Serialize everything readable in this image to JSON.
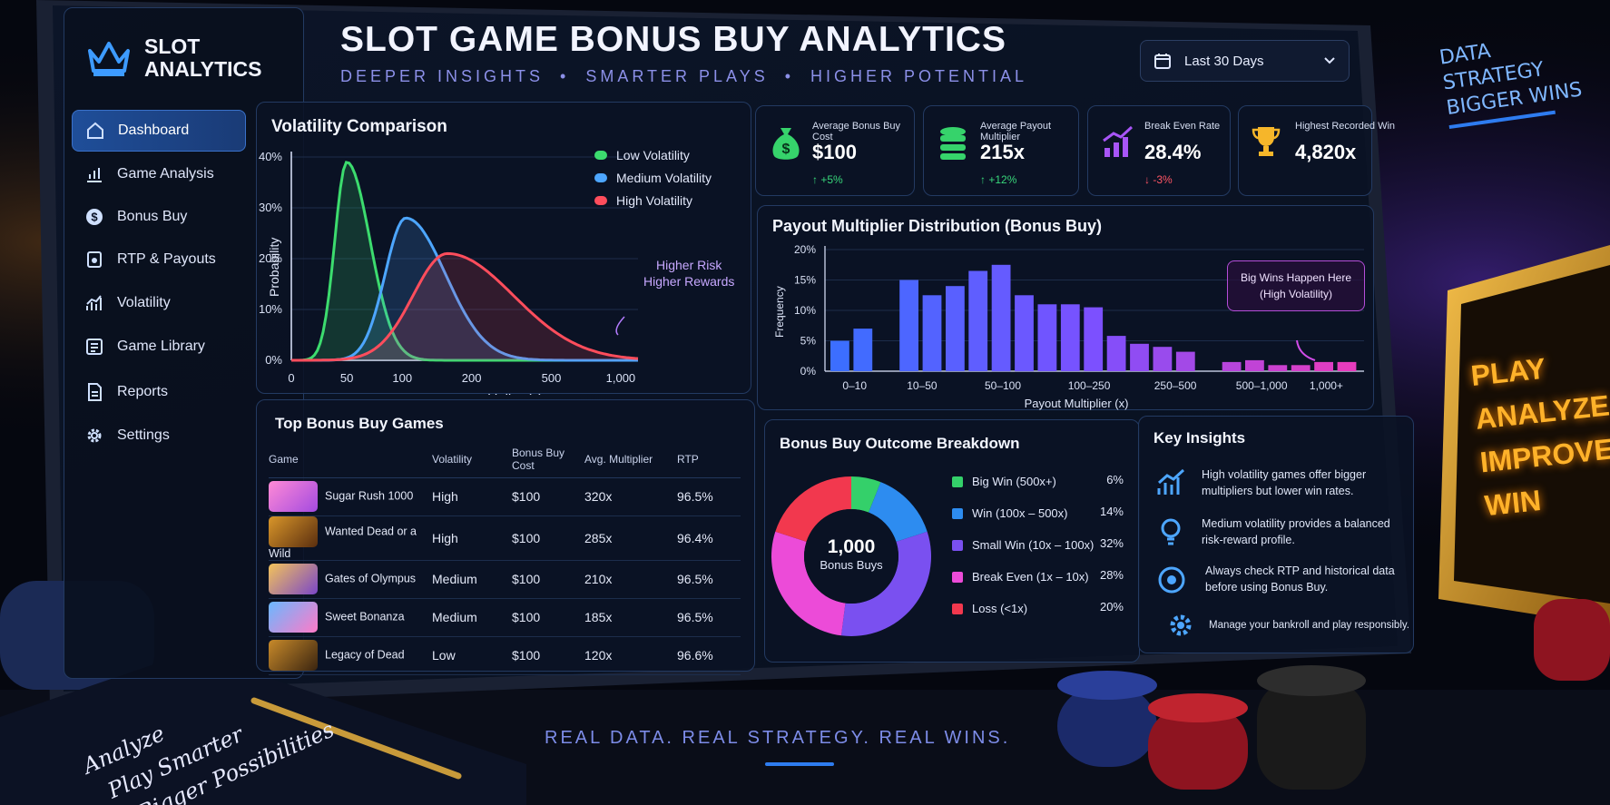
{
  "colors": {
    "accent": "#3a71c9",
    "low": "#3cdc6e",
    "medium": "#4da6ff",
    "high": "#ff4d5c",
    "bg": "#05070f"
  },
  "sidebar": {
    "logo_icon": "crown-icon",
    "logo_text": "SLOT ANALYTICS",
    "items": [
      {
        "label": "Dashboard",
        "icon": "home-icon",
        "active": true
      },
      {
        "label": "Game Analysis",
        "icon": "chart-icon"
      },
      {
        "label": "Bonus Buy",
        "icon": "dollar-icon"
      },
      {
        "label": "RTP & Payouts",
        "icon": "payout-icon"
      },
      {
        "label": "Volatility",
        "icon": "volatility-icon"
      },
      {
        "label": "Game Library",
        "icon": "library-icon"
      },
      {
        "label": "Reports",
        "icon": "reports-icon"
      },
      {
        "label": "Settings",
        "icon": "gear-icon"
      }
    ]
  },
  "header": {
    "title": "SLOT GAME BONUS BUY ANALYTICS",
    "subtitle": "DEEPER INSIGHTS  •  SMARTER PLAYS  •  HIGHER POTENTIAL",
    "date_range": "Last 30 Days"
  },
  "kpis": [
    {
      "label": "Average Bonus Buy Cost",
      "value": "$100",
      "change": "+5%",
      "direction": "up",
      "icon": "money-bag-icon"
    },
    {
      "label": "Average Payout Multiplier",
      "value": "215x",
      "change": "+12%",
      "direction": "up",
      "icon": "coins-stack-icon"
    },
    {
      "label": "Break Even Rate",
      "value": "28.4%",
      "change": "-3%",
      "direction": "down",
      "icon": "trend-icon"
    },
    {
      "label": "Highest Recorded Win",
      "value": "4,820x",
      "change": "",
      "direction": "",
      "icon": "trophy-icon"
    }
  ],
  "volatility": {
    "title": "Volatility Comparison",
    "annotation": [
      "Higher Risk",
      "Higher Rewards"
    ]
  },
  "distribution": {
    "title": "Payout Multiplier Distribution (Bonus Buy)",
    "annotation": [
      "Big Wins Happen Here",
      "(High Volatility)"
    ]
  },
  "top_games": {
    "title": "Top Bonus Buy Games",
    "columns": [
      "Game",
      "Volatility",
      "Bonus Buy Cost",
      "Avg. Multiplier",
      "RTP"
    ],
    "rows": [
      {
        "name": "Sugar Rush 1000",
        "volatility": "High",
        "cost": "$100",
        "mult": "320x",
        "rtp": "96.5%"
      },
      {
        "name": "Wanted Dead or a Wild",
        "volatility": "High",
        "cost": "$100",
        "mult": "285x",
        "rtp": "96.4%"
      },
      {
        "name": "Gates of Olympus",
        "volatility": "Medium",
        "cost": "$100",
        "mult": "210x",
        "rtp": "96.5%"
      },
      {
        "name": "Sweet Bonanza",
        "volatility": "Medium",
        "cost": "$100",
        "mult": "185x",
        "rtp": "96.5%"
      },
      {
        "name": "Legacy of Dead",
        "volatility": "Low",
        "cost": "$100",
        "mult": "120x",
        "rtp": "96.6%"
      }
    ]
  },
  "outcomes": {
    "title": "Bonus Buy Outcome Breakdown",
    "center_value": "1,000",
    "center_label": "Bonus Buys"
  },
  "insights": {
    "title": "Key Insights",
    "items": [
      {
        "icon": "chart-icon",
        "text": "High volatility games offer bigger multipliers but lower win rates."
      },
      {
        "icon": "lightbulb-icon",
        "text": "Medium volatility provides a balanced risk-reward profile."
      },
      {
        "icon": "target-icon",
        "text": "Always check RTP and historical data before using Bonus Buy."
      },
      {
        "icon": "gear-icon",
        "text": "Manage your bankroll and play responsibly."
      }
    ]
  },
  "footer": "REAL DATA. REAL STRATEGY. REAL WINS.",
  "scene": {
    "corner_text": [
      "DATA",
      "STRATEGY",
      "BIGGER WINS"
    ],
    "sign_text": [
      "PLAY",
      "ANALYZE",
      "IMPROVE",
      "WIN"
    ],
    "notebook_text": [
      "Analyze",
      "Play Smarter",
      "Bigger Possibilities"
    ]
  },
  "chart_data": [
    {
      "type": "area",
      "title": "Volatility Comparison",
      "xlabel": "Payout Multiplier (x)",
      "ylabel": "Probability",
      "x_ticks": [
        "0",
        "50",
        "100",
        "200",
        "500",
        "1,000"
      ],
      "y_ticks": [
        "0%",
        "10%",
        "20%",
        "30%",
        "40%"
      ],
      "ylim": [
        0,
        40
      ],
      "legend_position": "top-right",
      "series": [
        {
          "name": "Low Volatility",
          "color": "#3cdc6e",
          "peak_x": "50",
          "peak_y": 39
        },
        {
          "name": "Medium Volatility",
          "color": "#4da6ff",
          "peak_x": "100",
          "peak_y": 28
        },
        {
          "name": "High Volatility",
          "color": "#ff4d5c",
          "peak_x": "200",
          "peak_y": 21
        }
      ]
    },
    {
      "type": "bar",
      "title": "Payout Multiplier Distribution (Bonus Buy)",
      "xlabel": "Payout Multiplier (x)",
      "ylabel": "Frequency",
      "x_labels": [
        "0–10",
        "10–50",
        "50–100",
        "100–250",
        "250–500",
        "500–1,000",
        "1,000+"
      ],
      "y_ticks": [
        "0%",
        "5%",
        "10%",
        "15%",
        "20%"
      ],
      "ylim": [
        0,
        20
      ],
      "values": [
        5,
        7,
        0,
        15,
        12.5,
        14,
        16.5,
        17.5,
        12.5,
        11,
        11,
        10.5,
        5.8,
        4.5,
        4,
        3.2,
        0,
        1.5,
        1.8,
        1,
        1,
        1.5,
        1.5
      ]
    },
    {
      "type": "pie",
      "title": "Bonus Buy Outcome Breakdown",
      "slices": [
        {
          "label": "Big Win (500x+)",
          "value": 6,
          "display": "6%",
          "color": "#34d06a"
        },
        {
          "label": "Win (100x – 500x)",
          "value": 14,
          "display": "14%",
          "color": "#2d8cf0"
        },
        {
          "label": "Small Win (10x – 100x)",
          "value": 32,
          "display": "32%",
          "color": "#7a50f0"
        },
        {
          "label": "Break Even (1x – 10x)",
          "value": 28,
          "display": "28%",
          "color": "#ec4bd8"
        },
        {
          "label": "Loss (<1x)",
          "value": 20,
          "display": "20%",
          "color": "#f2384e"
        }
      ]
    }
  ]
}
